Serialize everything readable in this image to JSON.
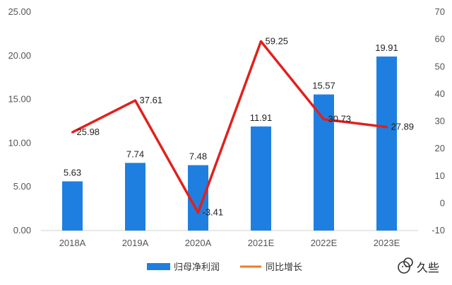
{
  "chart_data": {
    "type": "bar",
    "categories": [
      "2018A",
      "2019A",
      "2020A",
      "2021E",
      "2022E",
      "2023E"
    ],
    "series": [
      {
        "name": "归母净利润",
        "type": "bar",
        "axis": "left",
        "color": "#1f7fe0",
        "values": [
          5.63,
          7.74,
          7.48,
          11.91,
          15.57,
          19.91
        ],
        "labels": [
          "5.63",
          "7.74",
          "7.48",
          "11.91",
          "15.57",
          "19.91"
        ]
      },
      {
        "name": "同比增长",
        "type": "line",
        "axis": "right",
        "color": "#e0211d",
        "values": [
          25.98,
          37.61,
          -3.41,
          59.25,
          30.73,
          27.89
        ],
        "labels": [
          "25.98",
          "37.61",
          "-3.41",
          "59.25",
          "30.73",
          "27.89"
        ]
      }
    ],
    "y_left": {
      "range": [
        0,
        25
      ],
      "ticks": [
        0,
        5,
        10,
        15,
        20,
        25
      ],
      "tick_labels": [
        "0.00",
        "5.00",
        "10.00",
        "15.00",
        "20.00",
        "25.00"
      ]
    },
    "y_right": {
      "range": [
        -10,
        70
      ],
      "ticks": [
        -10,
        0,
        10,
        20,
        30,
        40,
        50,
        60,
        70
      ],
      "tick_labels": [
        "-10",
        "0",
        "10",
        "20",
        "30",
        "40",
        "50",
        "60",
        "70"
      ]
    },
    "grid": false,
    "legend_position": "bottom-center",
    "line_legend_color": "#f07b28"
  },
  "watermark": {
    "text": "久些",
    "icon": "wechat-icon"
  }
}
